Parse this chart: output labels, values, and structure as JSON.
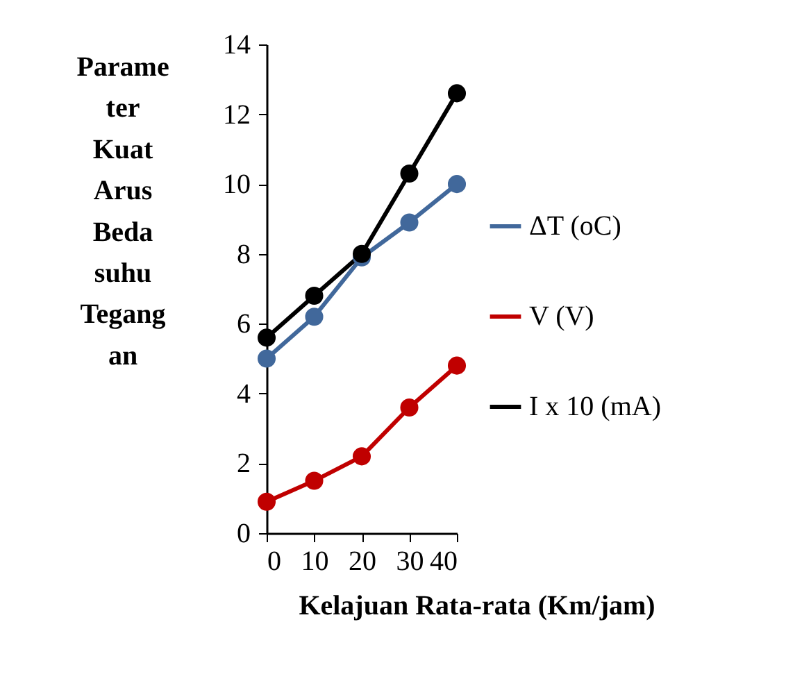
{
  "chart_data": {
    "type": "line",
    "xlabel": "Kelajuan Rata-rata (Km/jam)",
    "ylabel": "Parame\nter\n\nKuat\nArus\n\nBeda\nsuhu\n\nTegang\nan",
    "x": [
      0,
      10,
      20,
      30,
      40
    ],
    "xlim": [
      0,
      40
    ],
    "xticks": [
      0,
      10,
      20,
      30,
      40
    ],
    "ylim": [
      0,
      14
    ],
    "yticks": [
      0,
      2,
      4,
      6,
      8,
      10,
      12,
      14
    ],
    "series": [
      {
        "name": "ΔT (oC)",
        "color": "#41689b",
        "values": [
          5.0,
          6.2,
          7.9,
          8.9,
          10.0
        ]
      },
      {
        "name": "V (V)",
        "color": "#c00000",
        "values": [
          0.9,
          1.5,
          2.2,
          3.6,
          4.8
        ]
      },
      {
        "name": "I x 10 (mA)",
        "color": "#000000",
        "values": [
          5.6,
          6.8,
          8.0,
          10.3,
          12.6
        ]
      }
    ],
    "grid": false,
    "legend": "right",
    "marker": "circle"
  }
}
